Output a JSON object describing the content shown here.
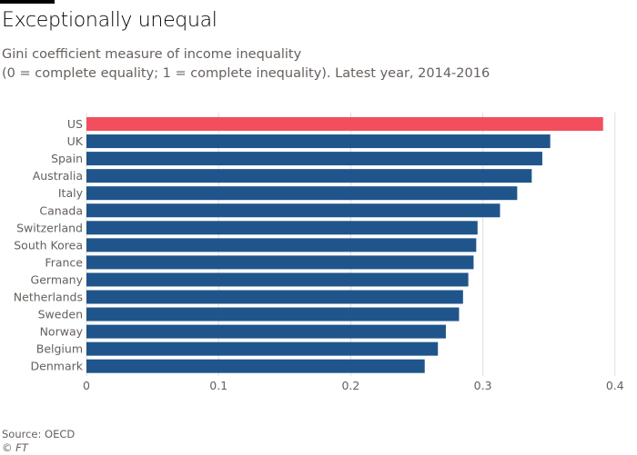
{
  "header": {
    "title": "Exceptionally unequal",
    "subtitle_line1": "Gini coefficient measure of income inequality",
    "subtitle_line2": "(0 = complete equality; 1 = complete inequality). Latest year, 2014-2016"
  },
  "footer": {
    "source": "Source: OECD",
    "credit": "© FT"
  },
  "colors": {
    "highlight": "#f24e5d",
    "bar": "#1f558b",
    "grid": "#e6ddd6",
    "text": "#66605c"
  },
  "chart_data": {
    "type": "bar",
    "orientation": "horizontal",
    "title": "Exceptionally unequal",
    "subtitle": "Gini coefficient measure of income inequality (0 = complete equality; 1 = complete inequality). Latest year, 2014-2016",
    "xlabel": "",
    "ylabel": "",
    "xlim": [
      0,
      0.4
    ],
    "xticks": [
      0,
      0.1,
      0.2,
      0.3,
      0.4
    ],
    "xtick_labels": [
      "0",
      "0.1",
      "0.2",
      "0.3",
      "0.4"
    ],
    "grid": true,
    "legend": "none",
    "highlighted_category": "US",
    "categories": [
      "US",
      "UK",
      "Spain",
      "Australia",
      "Italy",
      "Canada",
      "Switzerland",
      "South Korea",
      "France",
      "Germany",
      "Netherlands",
      "Sweden",
      "Norway",
      "Belgium",
      "Denmark"
    ],
    "values": [
      0.391,
      0.351,
      0.345,
      0.337,
      0.326,
      0.313,
      0.296,
      0.295,
      0.293,
      0.289,
      0.285,
      0.282,
      0.272,
      0.266,
      0.256
    ],
    "source": "Source: OECD"
  }
}
